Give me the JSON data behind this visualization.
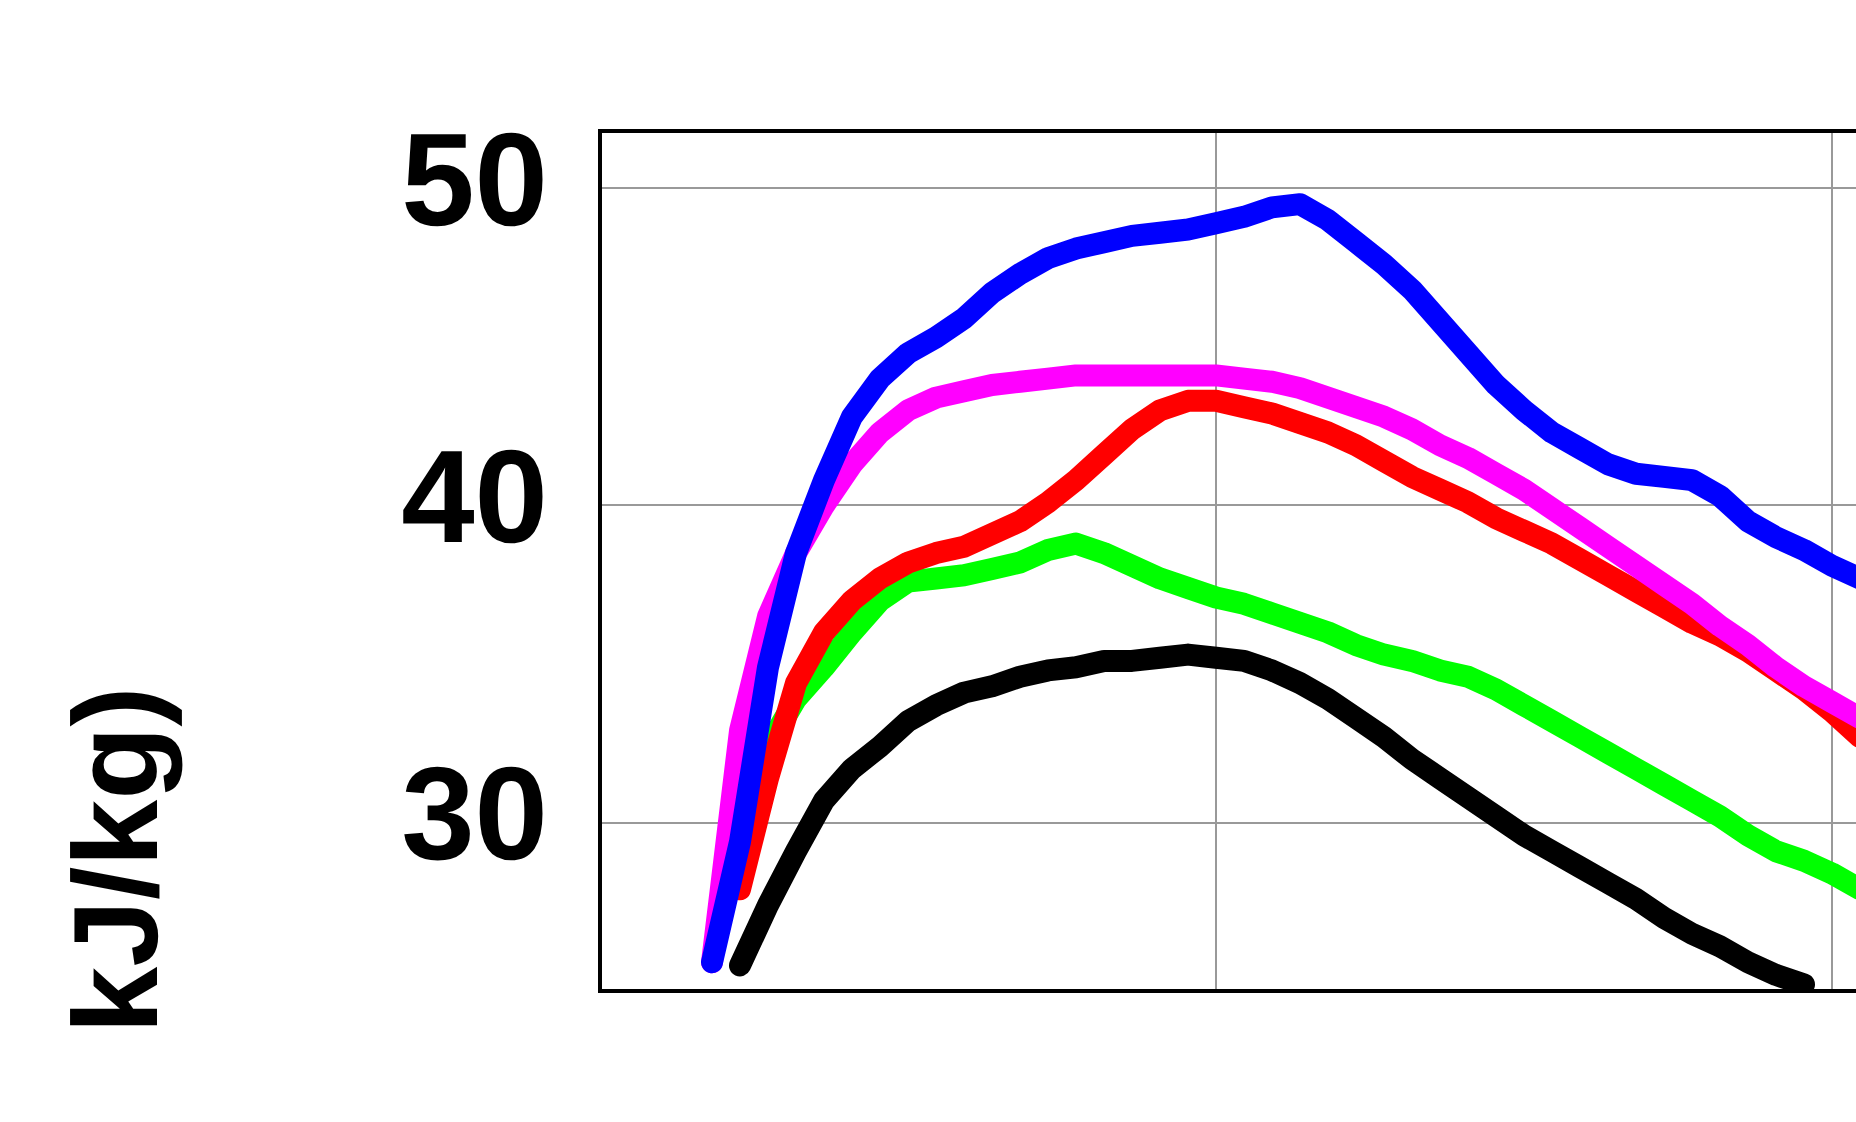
{
  "chart_data": {
    "type": "line",
    "ylabel": "kJ/kg)",
    "categories": [
      null,
      null,
      null,
      null,
      null,
      null,
      null,
      null,
      null,
      null,
      null,
      null,
      null,
      null,
      null,
      null,
      null,
      null,
      null,
      null,
      null,
      null,
      null,
      null,
      null,
      null,
      null,
      null,
      null,
      null,
      null,
      null,
      null,
      null,
      null,
      null,
      null,
      null,
      null,
      null,
      null,
      null,
      null,
      null,
      null,
      null,
      null
    ],
    "series": [
      {
        "color": "#0000ff",
        "values": [
          null,
          null,
          null,
          null,
          25.6,
          29.4,
          34.9,
          38.5,
          40.8,
          42.8,
          44.0,
          44.8,
          45.3,
          45.9,
          46.7,
          47.3,
          47.8,
          48.1,
          48.3,
          48.5,
          48.6,
          48.7,
          48.9,
          49.1,
          49.4,
          49.5,
          49.0,
          48.3,
          47.6,
          46.8,
          45.8,
          44.8,
          43.8,
          43.0,
          42.3,
          41.8,
          41.3,
          41.0,
          40.9,
          40.8,
          40.3,
          39.5,
          39.0,
          38.6,
          38.1,
          37.7,
          null
        ]
      },
      {
        "color": "#ff00ff",
        "values": [
          null,
          null,
          null,
          null,
          25.6,
          32.9,
          36.5,
          38.5,
          40.0,
          41.3,
          42.3,
          43.0,
          43.4,
          43.6,
          43.8,
          43.9,
          44.0,
          44.1,
          44.1,
          44.1,
          44.1,
          44.1,
          44.1,
          44.0,
          43.9,
          43.7,
          43.4,
          43.1,
          42.8,
          42.4,
          41.9,
          41.5,
          41.0,
          40.5,
          39.9,
          39.3,
          38.7,
          38.1,
          37.5,
          36.9,
          36.2,
          35.6,
          34.9,
          34.3,
          33.8,
          33.3,
          null
        ]
      },
      {
        "color": "#ff0000",
        "values": [
          null,
          null,
          null,
          null,
          null,
          27.9,
          31.4,
          34.4,
          36.0,
          37.0,
          37.7,
          38.2,
          38.5,
          38.7,
          39.1,
          39.5,
          40.1,
          40.8,
          41.6,
          42.4,
          43.0,
          43.3,
          43.3,
          43.1,
          42.9,
          42.6,
          42.3,
          41.9,
          41.4,
          40.9,
          40.5,
          40.1,
          39.6,
          39.2,
          38.8,
          38.3,
          37.8,
          37.3,
          36.8,
          36.3,
          35.9,
          35.4,
          34.8,
          34.2,
          33.5,
          32.7,
          null
        ]
      },
      {
        "color": "#00ff00",
        "values": [
          null,
          null,
          null,
          null,
          null,
          null,
          32.4,
          33.9,
          34.9,
          36.0,
          37.0,
          37.6,
          37.7,
          37.8,
          38.0,
          38.2,
          38.6,
          38.8,
          38.5,
          38.1,
          37.7,
          37.4,
          37.1,
          36.9,
          36.6,
          36.3,
          36.0,
          35.6,
          35.3,
          35.1,
          34.8,
          34.6,
          34.2,
          33.7,
          33.2,
          32.7,
          32.2,
          31.7,
          31.2,
          30.7,
          30.2,
          29.6,
          29.1,
          28.8,
          28.4,
          27.9,
          null
        ]
      },
      {
        "color": "#000000",
        "values": [
          null,
          null,
          null,
          null,
          null,
          25.5,
          27.4,
          29.1,
          30.7,
          31.7,
          32.4,
          33.2,
          33.7,
          34.1,
          34.3,
          34.6,
          34.8,
          34.9,
          35.1,
          35.1,
          35.2,
          35.3,
          35.2,
          35.1,
          34.8,
          34.4,
          33.9,
          33.3,
          32.7,
          32.0,
          31.4,
          30.8,
          30.2,
          29.6,
          29.1,
          28.6,
          28.1,
          27.6,
          27.0,
          26.5,
          26.1,
          25.6,
          25.2,
          24.9,
          null,
          null,
          null
        ]
      }
    ],
    "ylim": [
      24.7,
      51.8
    ],
    "yticks": [
      30,
      40,
      50
    ],
    "grid": true,
    "tick_labels": "y",
    "legend": false
  }
}
